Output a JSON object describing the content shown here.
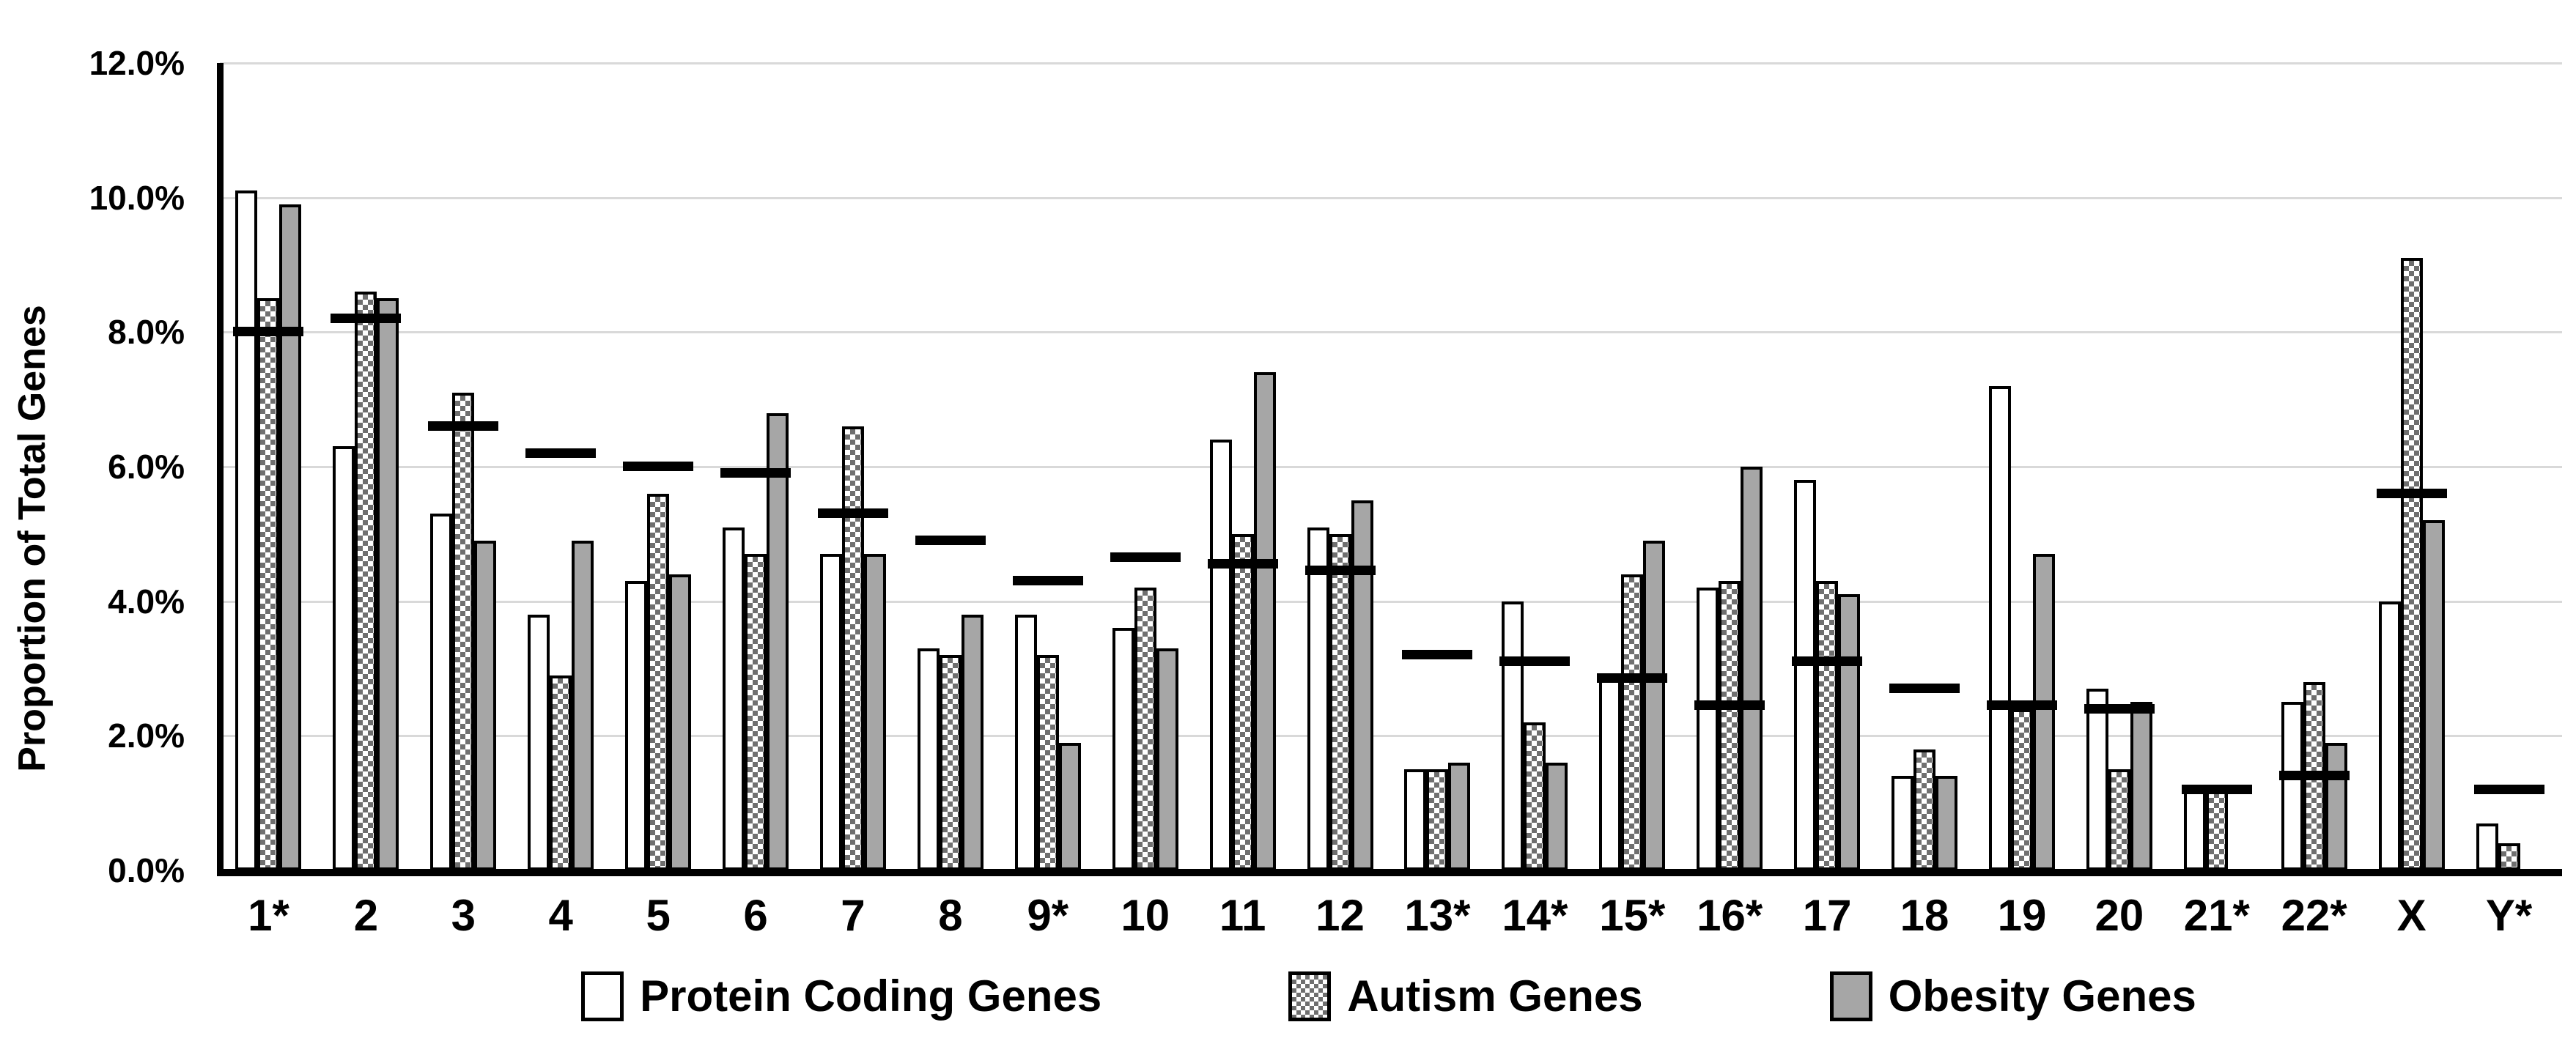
{
  "chart_data": {
    "type": "bar",
    "ylabel": "Proportion of Total Genes",
    "xlabel": "",
    "title": "",
    "ylim": [
      0,
      12
    ],
    "grid": "horizontal",
    "legend_position": "bottom-center",
    "yticks": [
      {
        "label": "0.0%",
        "value": 0
      },
      {
        "label": "2.0%",
        "value": 2
      },
      {
        "label": "4.0%",
        "value": 4
      },
      {
        "label": "6.0%",
        "value": 6
      },
      {
        "label": "8.0%",
        "value": 8
      },
      {
        "label": "10.0%",
        "value": 10
      },
      {
        "label": "12.0%",
        "value": 12
      }
    ],
    "categories": [
      "1*",
      "2",
      "3",
      "4",
      "5",
      "6",
      "7",
      "8",
      "9*",
      "10",
      "11",
      "12",
      "13*",
      "14*",
      "15*",
      "16*",
      "17",
      "18",
      "19",
      "20",
      "21*",
      "22*",
      "X",
      "Y*"
    ],
    "series": [
      {
        "id": "protein-coding",
        "name": "Protein Coding Genes",
        "fill": "#ffffff",
        "values": [
          10.1,
          6.3,
          5.3,
          3.8,
          4.3,
          5.1,
          4.7,
          3.3,
          3.8,
          3.6,
          6.4,
          5.1,
          1.5,
          4.0,
          2.9,
          4.2,
          5.8,
          1.4,
          7.2,
          2.7,
          1.2,
          2.5,
          4.0,
          0.7
        ]
      },
      {
        "id": "autism",
        "name": "Autism Genes",
        "fill": "checkered-gray-on-white",
        "values": [
          8.5,
          8.6,
          7.1,
          2.9,
          5.6,
          4.7,
          6.6,
          3.2,
          3.2,
          4.2,
          5.0,
          5.0,
          1.5,
          2.2,
          4.4,
          4.3,
          4.3,
          1.8,
          2.4,
          1.5,
          1.2,
          2.8,
          9.1,
          0.4
        ]
      },
      {
        "id": "obesity",
        "name": "Obesity Genes",
        "fill": "#a6a6a6",
        "values": [
          9.9,
          8.5,
          4.9,
          4.9,
          4.4,
          6.8,
          4.7,
          3.8,
          1.9,
          3.3,
          7.4,
          5.5,
          1.6,
          1.6,
          4.9,
          6.0,
          4.1,
          1.4,
          4.7,
          2.5,
          0,
          1.9,
          5.2,
          0
        ]
      }
    ],
    "reference_marks": {
      "shape": "thick-black-horizontal-dash",
      "values": [
        8.0,
        8.2,
        6.6,
        6.2,
        6.0,
        5.9,
        5.3,
        4.9,
        4.3,
        4.65,
        4.55,
        4.45,
        3.2,
        3.1,
        2.85,
        2.45,
        3.1,
        2.7,
        2.45,
        2.4,
        1.2,
        1.4,
        5.6,
        1.2
      ]
    },
    "colors": {
      "bar_border": "#000000",
      "gridline": "#d9d9d9",
      "axis": "#000000",
      "obesity_fill": "#a6a6a6",
      "checker_fill": "#6f6f6f"
    }
  }
}
